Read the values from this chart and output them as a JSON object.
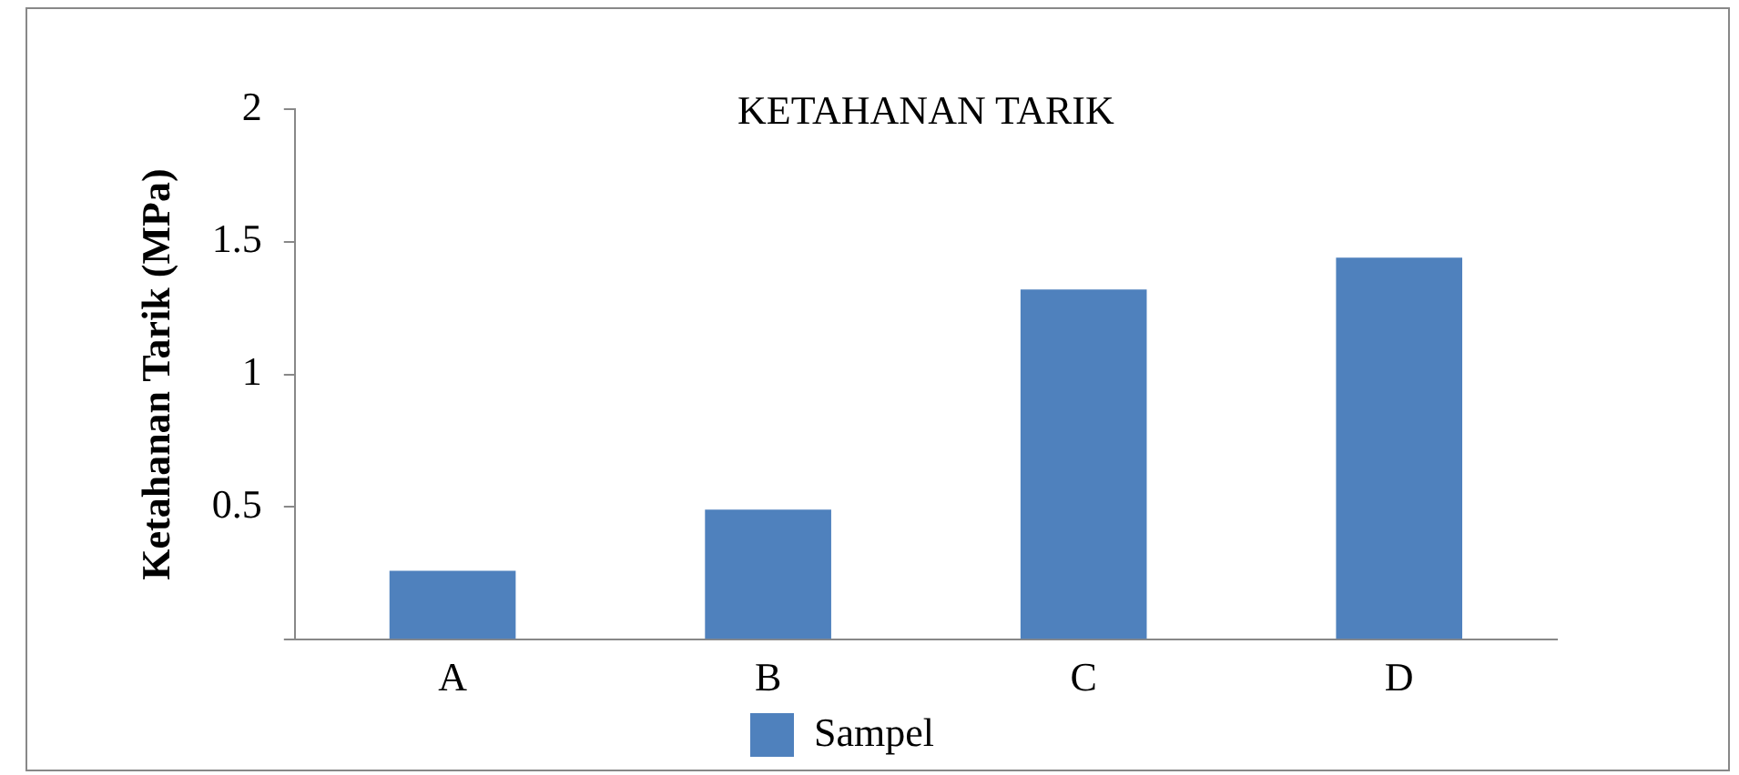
{
  "chart_data": {
    "type": "bar",
    "title": "KETAHANAN TARIK",
    "ylabel": "Ketahanan Tarik (MPa)",
    "categories": [
      "A",
      "B",
      "C",
      "D"
    ],
    "series": [
      {
        "name": "Sampel",
        "color": "#4f81bd",
        "values": [
          0.26,
          0.49,
          1.32,
          1.44
        ]
      }
    ],
    "ylim": [
      0,
      2
    ],
    "yticks": [
      {
        "value": 0,
        "label": null
      },
      0.5,
      1,
      1.5,
      2
    ],
    "grid": false,
    "legend": "bottom"
  }
}
